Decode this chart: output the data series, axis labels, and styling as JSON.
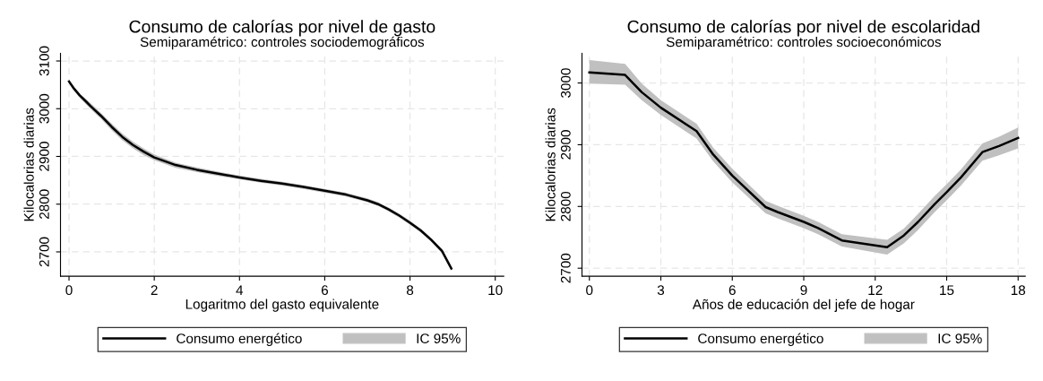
{
  "chart_data": [
    {
      "type": "line",
      "title": "Consumo de calorías por nivel de gasto",
      "subtitle": "Semiparamétrico: controles sociodemográficos",
      "xlabel": "Logaritmo del gasto equivalente",
      "ylabel": "Kilocalorias diarias",
      "annotations": [
        "IC 95%"
      ],
      "x": [
        0,
        0.1,
        0.25,
        0.4,
        0.5,
        0.75,
        1,
        1.25,
        1.5,
        1.75,
        2,
        2.5,
        3,
        3.5,
        4,
        4.5,
        5,
        5.5,
        6,
        6.5,
        7,
        7.25,
        7.5,
        7.75,
        8,
        8.25,
        8.5,
        8.75,
        8.97
      ],
      "series": [
        {
          "name": "Consumo energético",
          "color": "#000000",
          "values": [
            3057,
            3044,
            3028,
            3015,
            3006,
            2985,
            2962,
            2941,
            2924,
            2910,
            2898,
            2882,
            2872,
            2864,
            2856,
            2849,
            2843,
            2836,
            2828,
            2820,
            2808,
            2800,
            2789,
            2776,
            2761,
            2745,
            2725,
            2702,
            2665
          ],
          "lower": [
            3053,
            3040,
            3023,
            3009,
            3000,
            2979,
            2955,
            2934,
            2917,
            2903,
            2892,
            2876,
            2867,
            2859,
            2852,
            2845,
            2839,
            2832,
            2824,
            2816,
            2804,
            2796,
            2785,
            2772,
            2757,
            2741,
            2721,
            2697,
            2661
          ],
          "upper": [
            3061,
            3048,
            3032,
            3020,
            3012,
            2991,
            2969,
            2948,
            2931,
            2917,
            2904,
            2887,
            2877,
            2868,
            2860,
            2853,
            2847,
            2840,
            2832,
            2824,
            2812,
            2804,
            2793,
            2780,
            2765,
            2749,
            2729,
            2706,
            2669
          ]
        }
      ],
      "xlim": [
        -0.2,
        10.2
      ],
      "ylim": [
        2649,
        3116
      ],
      "xticks": [
        0,
        2,
        4,
        6,
        8,
        10
      ],
      "yticks": [
        2700,
        2800,
        2900,
        3000,
        3100
      ],
      "grid": true,
      "legend": "bottom",
      "line_style": "solid",
      "marker": "none"
    },
    {
      "type": "line",
      "title": "Consumo de calorías por nivel de escolaridad",
      "subtitle": "Semiparamétrico: controles socioeconómicos",
      "xlabel": "Años de educación del jefe de hogar",
      "ylabel": "Kilocalorias diarias",
      "annotations": [
        "IC 95%"
      ],
      "x": [
        0,
        1.5,
        2.2,
        3,
        4.5,
        5.2,
        6,
        7.4,
        7.9,
        9,
        9.6,
        10.2,
        10.6,
        12.5,
        13.2,
        13.8,
        14.5,
        15,
        15.6,
        16.5,
        17.2,
        18
      ],
      "series": [
        {
          "name": "Consumo energético",
          "color": "#000000",
          "values": [
            3017,
            3013,
            2985,
            2960,
            2922,
            2884,
            2850,
            2799,
            2791,
            2775,
            2765,
            2753,
            2745,
            2734,
            2753,
            2775,
            2804,
            2823,
            2847,
            2888,
            2898,
            2911
          ],
          "lower": [
            2999,
            2997,
            2972,
            2948,
            2910,
            2873,
            2839,
            2789,
            2781,
            2765,
            2755,
            2743,
            2735,
            2722,
            2740,
            2762,
            2791,
            2810,
            2834,
            2874,
            2883,
            2894
          ],
          "upper": [
            3037,
            3031,
            2999,
            2972,
            2934,
            2895,
            2861,
            2809,
            2801,
            2785,
            2775,
            2763,
            2755,
            2746,
            2764,
            2788,
            2817,
            2836,
            2860,
            2902,
            2913,
            2928
          ]
        }
      ],
      "xlim": [
        -0.31,
        18.3
      ],
      "ylim": [
        2687,
        3048
      ],
      "xticks": [
        0,
        3,
        6,
        9,
        12,
        15,
        18
      ],
      "yticks": [
        2700,
        2800,
        2900,
        3000
      ],
      "grid": true,
      "legend": "bottom",
      "line_style": "solid",
      "marker": "none"
    }
  ]
}
